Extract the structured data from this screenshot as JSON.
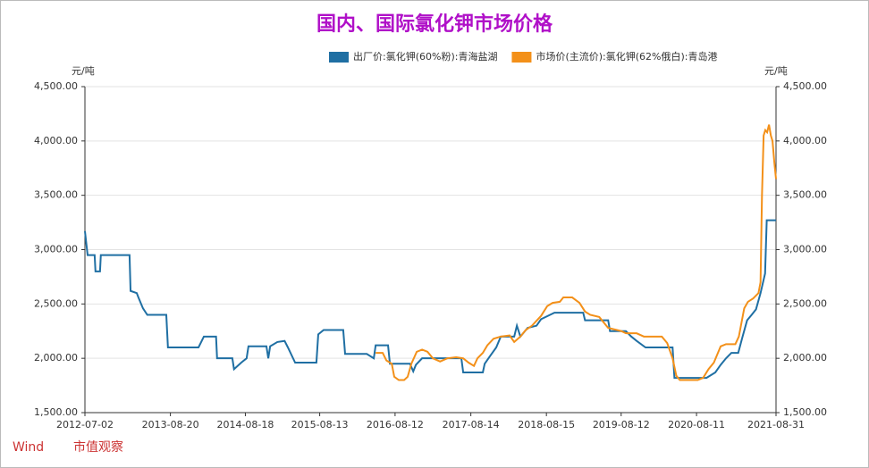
{
  "chart_data": {
    "type": "line",
    "title": "国内、国际氯化钾市场价格",
    "y_label": "元/吨",
    "y2_label": "元/吨",
    "source": "Wind",
    "source_note": "市值观察",
    "xlim": [
      "2012-07-02",
      "2021-08-31"
    ],
    "xticks": [
      "2012-07-02",
      "2013-08-20",
      "2014-08-18",
      "2015-08-13",
      "2016-08-12",
      "2017-08-14",
      "2018-08-15",
      "2019-08-12",
      "2020-08-11",
      "2021-08-31"
    ],
    "ylim": [
      1500,
      4500
    ],
    "yticks": [
      {
        "value": 1500,
        "label": "1,500.00"
      },
      {
        "value": 2000,
        "label": "2,000.00"
      },
      {
        "value": 2500,
        "label": "2,500.00"
      },
      {
        "value": 3000,
        "label": "3,000.00"
      },
      {
        "value": 3500,
        "label": "3,500.00"
      },
      {
        "value": 4000,
        "label": "4,000.00"
      },
      {
        "value": 4500,
        "label": "4,500.00"
      }
    ],
    "y2lim": [
      1500,
      4500
    ],
    "y2ticks": [
      {
        "value": 1500,
        "label": "1,500.00"
      },
      {
        "value": 2000,
        "label": "2,000.00"
      },
      {
        "value": 2500,
        "label": "2,500.00"
      },
      {
        "value": 3000,
        "label": "3,000.00"
      },
      {
        "value": 3500,
        "label": "3,500.00"
      },
      {
        "value": 4000,
        "label": "4,000.00"
      },
      {
        "value": 4500,
        "label": "4,500.00"
      }
    ],
    "grid": true,
    "legend": "top-right",
    "series": [
      {
        "name": "出厂价:氯化钾(60%粉):青海盐湖",
        "color": "#1f6fa3",
        "x": [
          "2012-07-02",
          "2012-07-15",
          "2012-08-18",
          "2012-08-22",
          "2012-09-13",
          "2012-09-17",
          "2013-02-03",
          "2013-02-08",
          "2013-03-10",
          "2013-03-18",
          "2013-04-09",
          "2013-04-30",
          "2013-07-31",
          "2013-08-08",
          "2014-01-03",
          "2014-01-16",
          "2014-01-29",
          "2014-03-29",
          "2014-04-03",
          "2014-06-16",
          "2014-06-24",
          "2014-07-29",
          "2014-08-24",
          "2014-09-02",
          "2014-11-28",
          "2014-12-07",
          "2014-12-16",
          "2015-01-20",
          "2015-02-24",
          "2015-03-12",
          "2015-04-16",
          "2015-07-28",
          "2015-08-06",
          "2015-09-01",
          "2015-12-05",
          "2015-12-14",
          "2016-03-28",
          "2016-05-01",
          "2016-05-10",
          "2016-07-09",
          "2016-07-18",
          "2016-10-23",
          "2016-11-08",
          "2016-11-21",
          "2016-12-21",
          "2017-01-25",
          "2017-06-29",
          "2017-07-08",
          "2017-10-11",
          "2017-10-20",
          "2017-11-15",
          "2017-12-15",
          "2018-01-06",
          "2018-03-12",
          "2018-03-25",
          "2018-04-11",
          "2018-05-16",
          "2018-06-28",
          "2018-07-20",
          "2018-09-23",
          "2019-02-09",
          "2019-02-18",
          "2019-06-10",
          "2019-06-19",
          "2019-09-04",
          "2019-09-30",
          "2019-10-26",
          "2019-12-08",
          "2020-04-17",
          "2020-04-26",
          "2020-09-28",
          "2020-11-10",
          "2020-12-06",
          "2021-01-01",
          "2021-01-27",
          "2021-03-01",
          "2021-03-22",
          "2021-04-13",
          "2021-05-05",
          "2021-05-26",
          "2021-06-17",
          "2021-07-09",
          "2021-07-17",
          "2021-08-31"
        ],
        "values": [
          3170,
          2950,
          2950,
          2800,
          2800,
          2950,
          2950,
          2620,
          2600,
          2560,
          2460,
          2400,
          2400,
          2100,
          2100,
          2150,
          2200,
          2200,
          2000,
          2000,
          1900,
          1960,
          2000,
          2110,
          2110,
          2000,
          2110,
          2150,
          2160,
          2100,
          1960,
          1960,
          2220,
          2260,
          2260,
          2040,
          2040,
          2000,
          2120,
          2120,
          1950,
          1950,
          1880,
          1940,
          2000,
          2000,
          2000,
          1870,
          1870,
          1950,
          2020,
          2100,
          2200,
          2200,
          2300,
          2200,
          2280,
          2300,
          2360,
          2420,
          2420,
          2350,
          2350,
          2250,
          2250,
          2200,
          2160,
          2100,
          2100,
          1820,
          1820,
          1870,
          1940,
          2000,
          2050,
          2050,
          2200,
          2350,
          2400,
          2450,
          2600,
          2780,
          3270,
          3270
        ]
      },
      {
        "name": "市场价(主流价):氯化钾(62%俄白):青岛港",
        "color": "#f39019",
        "axis": "y2",
        "x": [
          "2016-05-10",
          "2016-06-13",
          "2016-07-01",
          "2016-07-27",
          "2016-08-08",
          "2016-08-30",
          "2016-09-25",
          "2016-10-12",
          "2016-10-30",
          "2016-11-25",
          "2016-12-21",
          "2017-01-16",
          "2017-02-11",
          "2017-03-18",
          "2017-04-22",
          "2017-06-04",
          "2017-07-08",
          "2017-08-03",
          "2017-08-29",
          "2017-09-15",
          "2017-10-11",
          "2017-11-02",
          "2017-12-02",
          "2018-01-06",
          "2018-02-18",
          "2018-03-12",
          "2018-04-11",
          "2018-05-07",
          "2018-06-06",
          "2018-07-20",
          "2018-08-19",
          "2018-09-14",
          "2018-10-19",
          "2018-11-05",
          "2018-12-18",
          "2019-01-22",
          "2019-02-18",
          "2019-03-15",
          "2019-04-28",
          "2019-06-10",
          "2019-08-13",
          "2019-09-04",
          "2019-10-26",
          "2019-11-30",
          "2020-02-25",
          "2020-03-22",
          "2020-04-17",
          "2020-05-05",
          "2020-05-22",
          "2020-08-17",
          "2020-09-12",
          "2020-10-08",
          "2020-11-03",
          "2020-12-06",
          "2021-01-01",
          "2021-02-15",
          "2021-03-04",
          "2021-03-30",
          "2021-04-17",
          "2021-05-12",
          "2021-06-07",
          "2021-06-17",
          "2021-06-24",
          "2021-07-02",
          "2021-07-10",
          "2021-07-19",
          "2021-07-28",
          "2021-08-06",
          "2021-08-14",
          "2021-08-23",
          "2021-08-31"
        ],
        "values": [
          2050,
          2050,
          1980,
          1950,
          1830,
          1800,
          1800,
          1830,
          1950,
          2060,
          2080,
          2060,
          2000,
          1970,
          2000,
          2010,
          2000,
          1960,
          1930,
          2000,
          2050,
          2120,
          2180,
          2200,
          2210,
          2150,
          2200,
          2260,
          2300,
          2390,
          2480,
          2510,
          2520,
          2560,
          2560,
          2510,
          2430,
          2400,
          2380,
          2280,
          2250,
          2230,
          2230,
          2200,
          2200,
          2140,
          2000,
          1840,
          1800,
          1800,
          1820,
          1900,
          1960,
          2110,
          2130,
          2130,
          2200,
          2460,
          2520,
          2550,
          2600,
          2700,
          3500,
          4050,
          4100,
          4080,
          4150,
          4050,
          4000,
          3800,
          3650
        ]
      }
    ]
  }
}
